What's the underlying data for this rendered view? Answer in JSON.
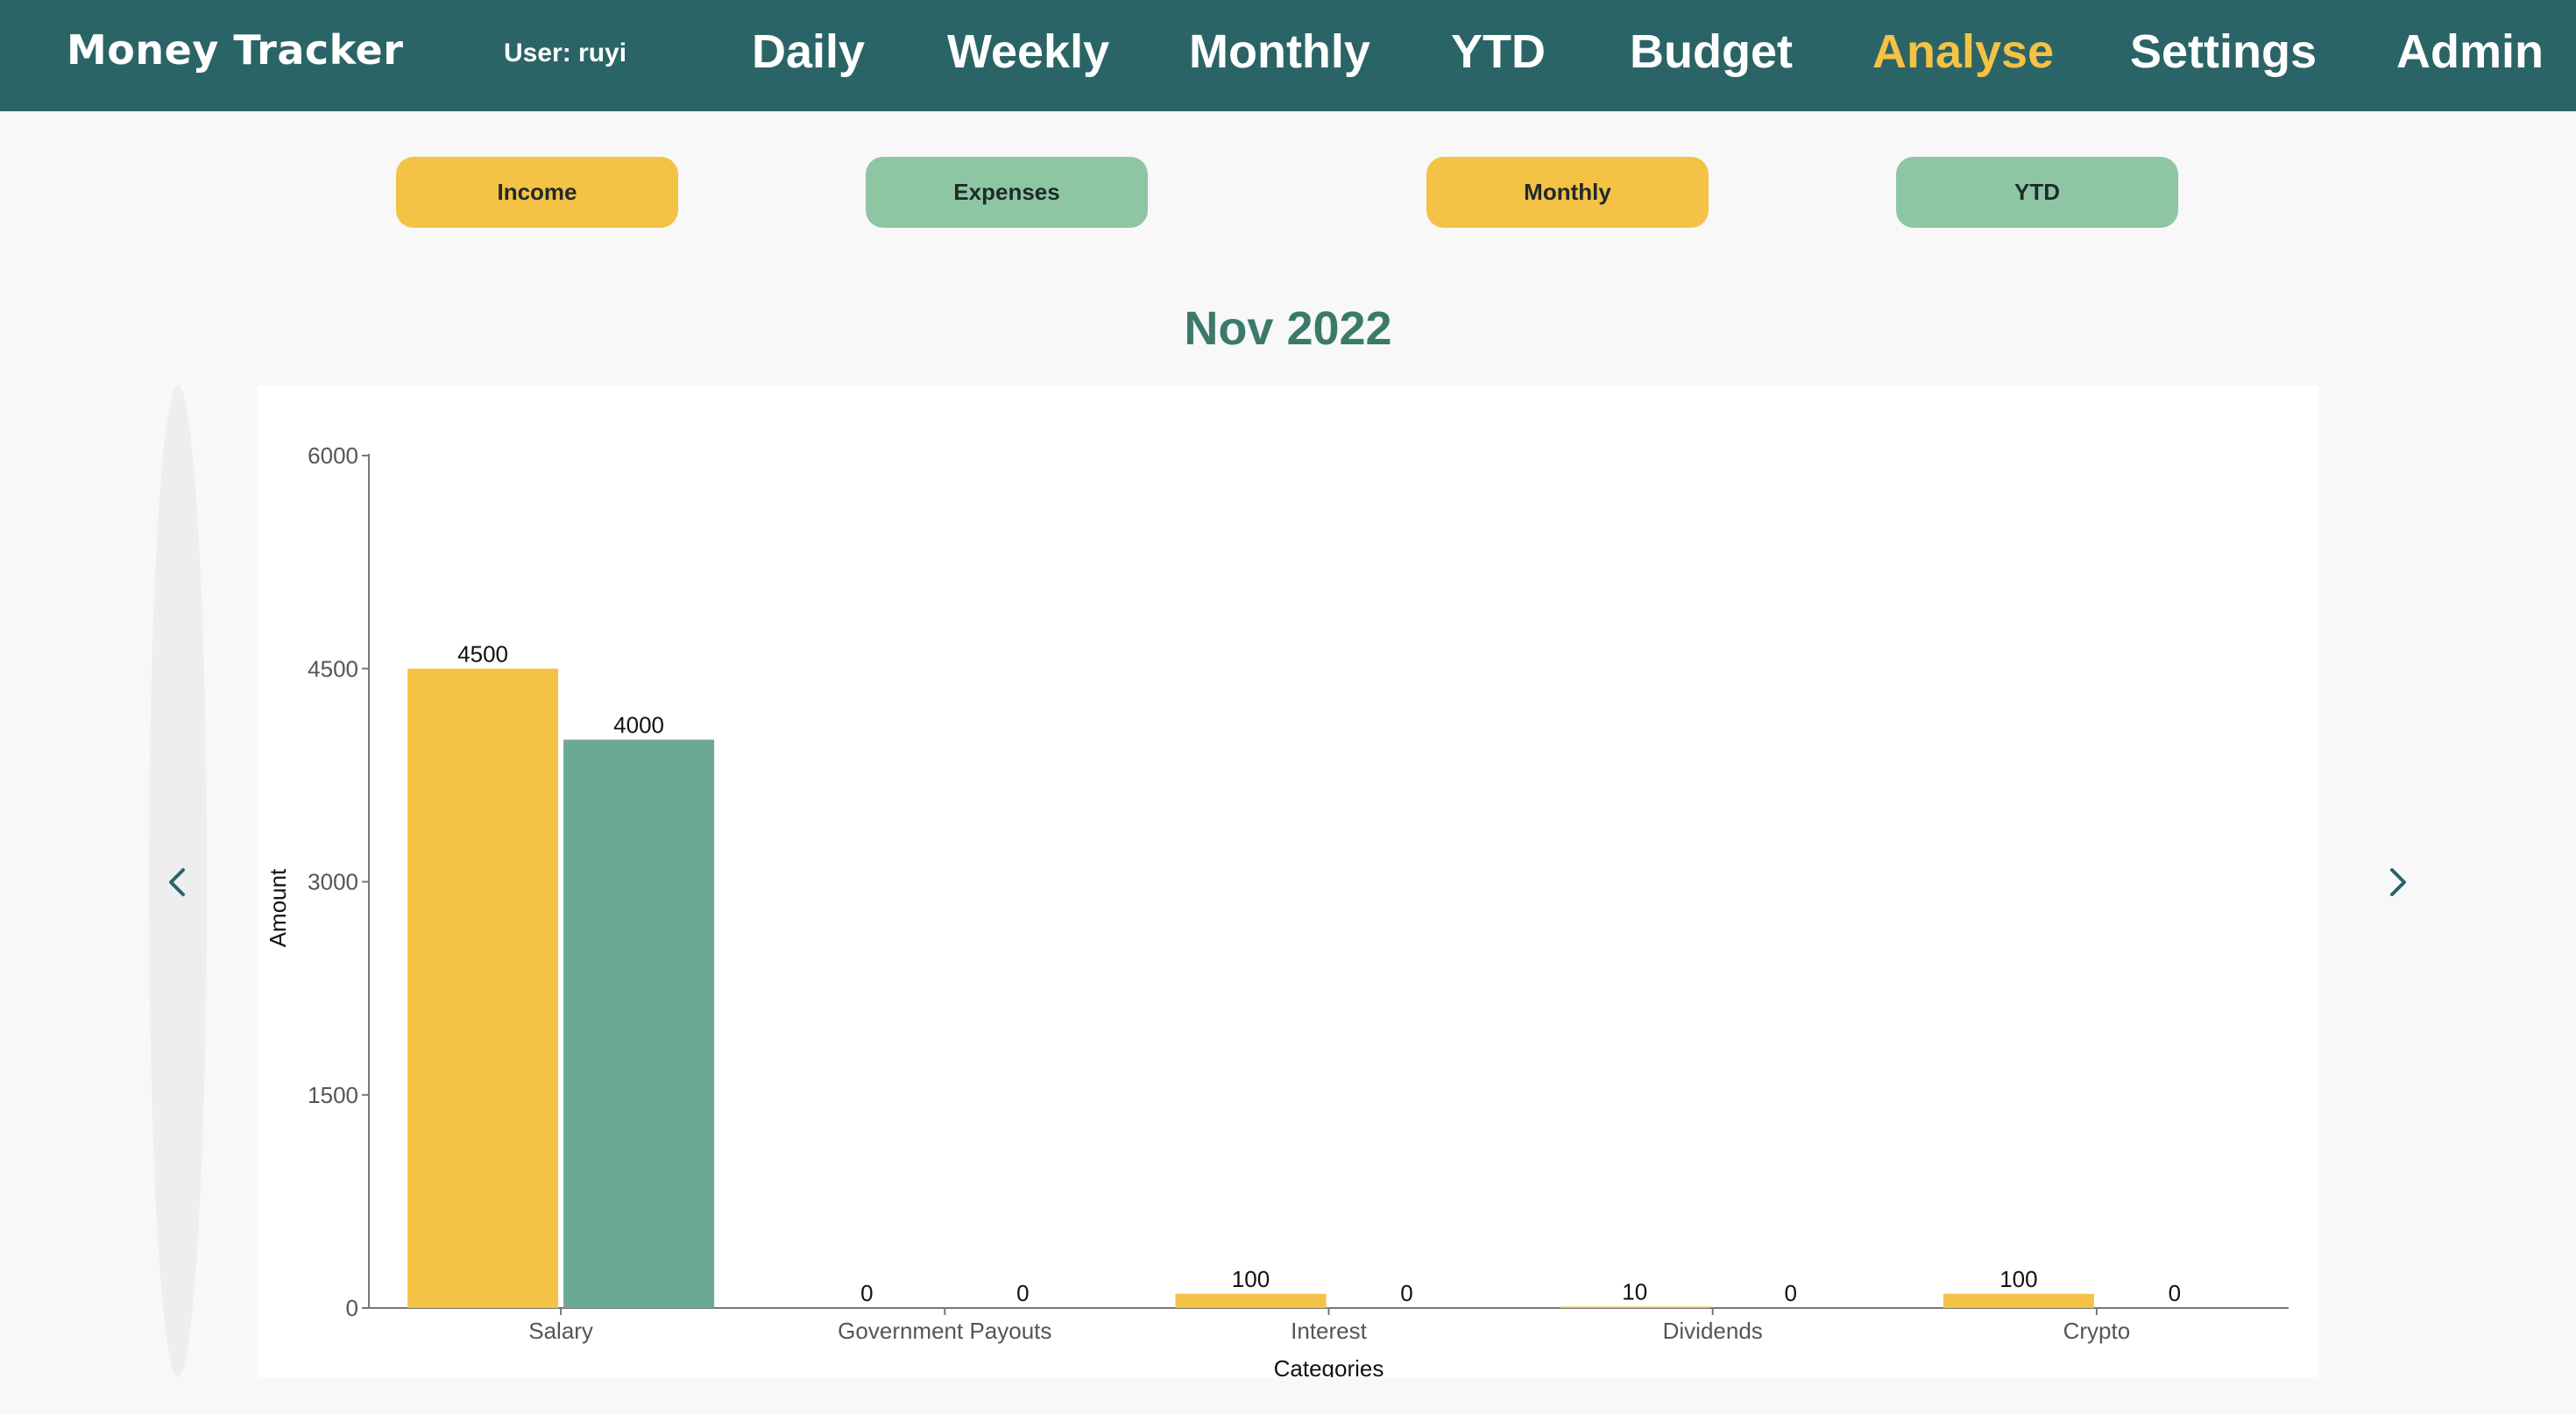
{
  "header": {
    "brand": "Money Tracker",
    "user": "User: ruyi",
    "nav": [
      {
        "label": "Daily",
        "active": false
      },
      {
        "label": "Weekly",
        "active": false
      },
      {
        "label": "Monthly",
        "active": false
      },
      {
        "label": "YTD",
        "active": false
      },
      {
        "label": "Budget",
        "active": false
      },
      {
        "label": "Analyse",
        "active": true
      },
      {
        "label": "Settings",
        "active": false
      },
      {
        "label": "Admin",
        "active": false
      }
    ]
  },
  "toggles": {
    "income": "Income",
    "expenses": "Expenses",
    "monthly": "Monthly",
    "ytd": "YTD"
  },
  "period_title": "Nov 2022",
  "icons": {
    "prev": "chevron-left-icon",
    "next": "chevron-right-icon"
  },
  "colors": {
    "header_bg": "#2b6466",
    "active_nav": "#f4c244",
    "series_a": "#f4c244",
    "series_b": "#6aaa92"
  },
  "chart_data": {
    "type": "bar",
    "categories": [
      "Salary",
      "Government Payouts",
      "Interest",
      "Dividends",
      "Crypto"
    ],
    "series": [
      {
        "values": [
          4500,
          0,
          100,
          10,
          100
        ],
        "color": "#f4c244"
      },
      {
        "values": [
          4000,
          0,
          0,
          0,
          0
        ],
        "color": "#6aaa92"
      }
    ],
    "xlabel": "Categories",
    "ylabel": "Amount",
    "ylim": [
      0,
      6000
    ],
    "yticks": [
      0,
      1500,
      3000,
      4500,
      6000
    ],
    "grid": false,
    "legend": "none"
  }
}
